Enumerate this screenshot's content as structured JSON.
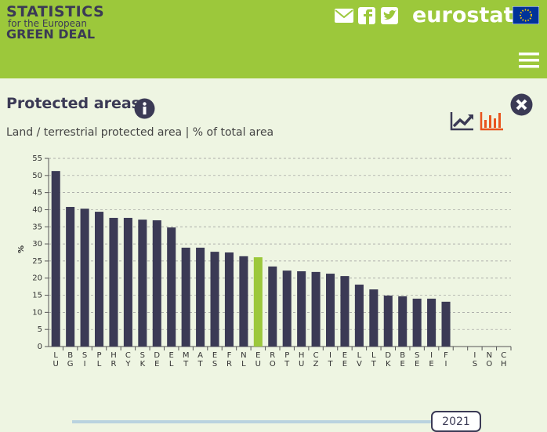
{
  "header": {
    "logo": [
      "STATISTICS",
      "for the European",
      "GREEN DEAL"
    ],
    "brand": "eurostat"
  },
  "chart_data": {
    "type": "bar",
    "title": "Protected areas",
    "subtitle": "Land / terrestrial protected area | % of total area",
    "y_label": "%",
    "categories": [
      "LU",
      "BG",
      "SI",
      "PL",
      "HR",
      "CY",
      "SK",
      "DE",
      "EL",
      "MT",
      "AT",
      "ES",
      "FR",
      "NL",
      "EU",
      "RO",
      "PT",
      "HU",
      "CZ",
      "IT",
      "EE",
      "LV",
      "LT",
      "DK",
      "BE",
      "SE",
      "IE",
      "FI",
      null,
      "IS",
      "NO",
      "CH"
    ],
    "values": [
      51.3,
      40.8,
      40.3,
      39.4,
      37.6,
      37.6,
      37.1,
      36.9,
      34.8,
      28.9,
      28.9,
      27.7,
      27.5,
      26.4,
      26.1,
      23.4,
      22.2,
      22.0,
      21.8,
      21.3,
      20.6,
      18.1,
      16.7,
      14.9,
      14.7,
      14.0,
      14.0,
      13.1,
      null,
      null,
      null,
      null
    ],
    "color": "#3b3a55",
    "highlight": "EU",
    "highlight_color": "#9cc83b",
    "ylim": [
      0,
      55
    ],
    "yticks": [
      0,
      5,
      10,
      15,
      20,
      25,
      30,
      35,
      40,
      45,
      50,
      55
    ],
    "grid": true
  },
  "slider": {
    "year": "2021"
  }
}
